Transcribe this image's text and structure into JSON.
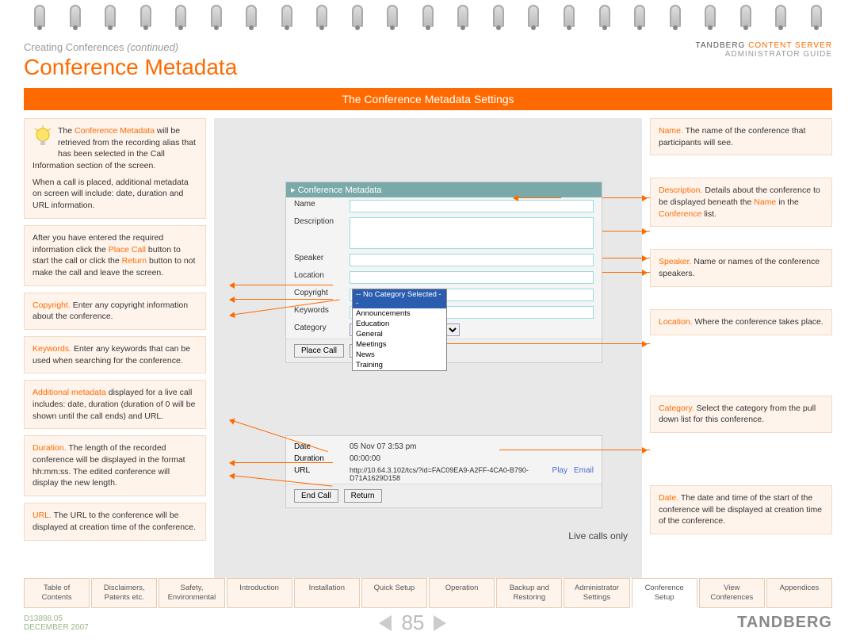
{
  "breadcrumb": {
    "section": "Creating Conferences",
    "cont": "(continued)"
  },
  "title": "Conference Metadata",
  "header": {
    "brand": "TANDBERG",
    "product": "CONTENT SERVER",
    "sub": "ADMINISTRATOR GUIDE"
  },
  "banner": "The Conference Metadata Settings",
  "left": {
    "b1": {
      "p1a": "The ",
      "hl1": "Conference Metadata",
      "p1b": " will be retrieved from the recording alias that has been selected in the Call Information section of the screen.",
      "p2": "When a call is placed, additional metadata on screen will include: date, duration and URL information."
    },
    "b2": {
      "t1": "After you have entered the required information click the ",
      "hl1": "Place Call",
      "t2": " button to start the call or click the ",
      "hl2": "Return",
      "t3": " button to not make the call and leave the screen."
    },
    "b3": {
      "hl": "Copyright.",
      "t": " Enter any copyright information about the conference."
    },
    "b4": {
      "hl": "Keywords.",
      "t": " Enter any keywords that can be used when searching for the conference."
    },
    "b5": {
      "hl": "Additional metadata",
      "t": " displayed for a live call includes: date, duration (duration of 0 will be shown until the call ends) and URL."
    },
    "b6": {
      "hl": "Duration.",
      "t": " The length of the recorded conference will be displayed in the format hh:mm:ss. The edited conference will display the new length."
    },
    "b7": {
      "hl": "URL.",
      "t": " The URL to the conference will be displayed at creation time of the conference."
    }
  },
  "right": {
    "b1": {
      "hl": "Name.",
      "t": " The name of the conference that participants will see."
    },
    "b2": {
      "hl": "Description.",
      "t1": " Details about the conference to be displayed beneath the ",
      "hl2": "Name",
      "t2": " in the ",
      "hl3": "Conference",
      "t3": " list."
    },
    "b3": {
      "hl": "Speaker.",
      "t": " Name or names of the conference speakers."
    },
    "b4": {
      "hl": "Location.",
      "t": " Where the conference takes place."
    },
    "b5": {
      "hl": "Category.",
      "t": " Select the category from the pull down list for this conference."
    },
    "b6": {
      "hl": "Date.",
      "t": " The date and time of the start of the conference will be displayed at creation time of the conference."
    }
  },
  "panel": {
    "title": "Conference Metadata",
    "labels": {
      "name": "Name",
      "desc": "Description",
      "speaker": "Speaker",
      "location": "Location",
      "copyright": "Copyright",
      "keywords": "Keywords",
      "category": "Category"
    },
    "cat_placeholder": "-- No Category Selected --",
    "dropdown": [
      "-- No Category Selected --",
      "Announcements",
      "Education",
      "General",
      "Meetings",
      "News",
      "Training"
    ],
    "btn_place": "Place Call",
    "btn_return": "Return",
    "btn_end": "End Call",
    "meta": {
      "date_l": "Date",
      "date_v": "05 Nov 07 3:53 pm",
      "dur_l": "Duration",
      "dur_v": "00:00:00",
      "url_l": "URL",
      "url_v": "http://10.64.3.102/tcs/?id=FAC09EA9-A2FF-4CA0-B790-D71A1629D158",
      "play": "Play",
      "email": "Email"
    },
    "live": "Live calls only"
  },
  "tabs": [
    "Table of\nContents",
    "Disclaimers,\nPatents etc.",
    "Safety,\nEnvironmental",
    "Introduction",
    "Installation",
    "Quick Setup",
    "Operation",
    "Backup and\nRestoring",
    "Administrator\nSettings",
    "Conference\nSetup",
    "View\nConferences",
    "Appendices"
  ],
  "tab_active": 9,
  "footer": {
    "doc": "D13898.05",
    "date": "DECEMBER 2007",
    "page": "85",
    "logo": "TANDBERG"
  },
  "colors": {
    "accent": "#ff6a00",
    "box_bg": "#fff4ec"
  }
}
